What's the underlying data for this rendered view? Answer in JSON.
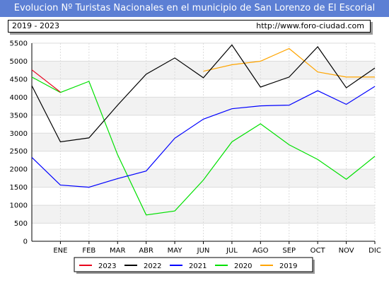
{
  "header": {
    "title": "Evolucion Nº Turistas Nacionales en el municipio de San Lorenzo de El Escorial",
    "years": "2019 - 2023",
    "site": "http://www.foro-ciudad.com"
  },
  "chart_data": {
    "type": "line",
    "categories": [
      "ENE",
      "FEB",
      "MAR",
      "ABR",
      "MAY",
      "JUN",
      "JUL",
      "AGO",
      "SEP",
      "OCT",
      "NOV",
      "DIC"
    ],
    "yticks": [
      0,
      500,
      1000,
      1500,
      2000,
      2500,
      3000,
      3500,
      4000,
      4500,
      5000,
      5500
    ],
    "ylim": [
      0,
      5500
    ],
    "grid": true,
    "legend_position": "bottom",
    "series": [
      {
        "name": "2023",
        "color": "#e8001c",
        "x": [
          0,
          1
        ],
        "values": [
          4760,
          4140
        ]
      },
      {
        "name": "2022",
        "color": "#000000",
        "x": [
          0,
          1,
          2,
          3,
          4,
          5,
          6,
          7,
          8,
          9,
          10,
          11,
          12
        ],
        "values": [
          4320,
          2760,
          2870,
          3780,
          4640,
          5090,
          4540,
          5450,
          4280,
          4560,
          5400,
          4260,
          4810
        ]
      },
      {
        "name": "2021",
        "color": "#0000ff",
        "x": [
          0,
          1,
          2,
          3,
          4,
          5,
          6,
          7,
          8,
          9,
          10,
          11,
          12
        ],
        "values": [
          2330,
          1560,
          1500,
          1740,
          1950,
          2860,
          3390,
          3680,
          3760,
          3780,
          4180,
          3800,
          4300
        ]
      },
      {
        "name": "2020",
        "color": "#00e000",
        "x": [
          0,
          1,
          2,
          3,
          4,
          5,
          6,
          7,
          8,
          9,
          10,
          11,
          12
        ],
        "values": [
          4560,
          4130,
          4440,
          2400,
          730,
          840,
          1700,
          2760,
          3260,
          2680,
          2270,
          1720,
          2360
        ]
      },
      {
        "name": "2019",
        "color": "#ffa500",
        "x": [
          6,
          7,
          8,
          9,
          10,
          11,
          12
        ],
        "values": [
          4720,
          4900,
          5000,
          5350,
          4700,
          4560,
          4560
        ]
      }
    ]
  }
}
